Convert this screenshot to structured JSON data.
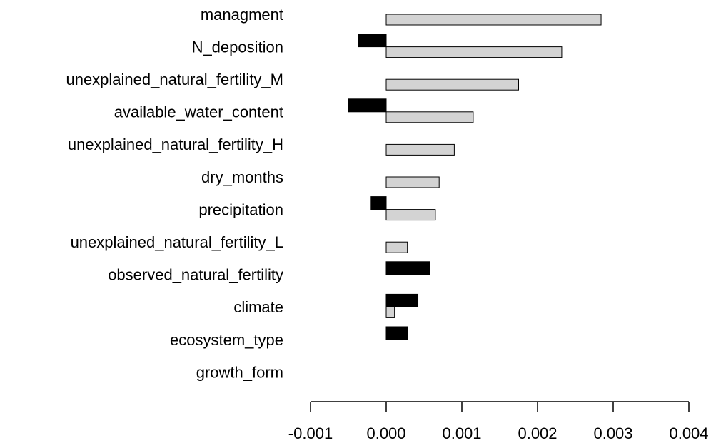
{
  "chart_data": {
    "type": "bar",
    "orientation": "horizontal",
    "categories": [
      "managment",
      "N_deposition",
      "unexplained_natural_fertility_M",
      "available_water_content",
      "unexplained_natural_fertility_H",
      "dry_months",
      "precipitation",
      "unexplained_natural_fertility_L",
      "observed_natural_fertility",
      "climate",
      "ecosystem_type",
      "growth_form"
    ],
    "series": [
      {
        "color": "#000000",
        "values": [
          0,
          -0.00037,
          0,
          -0.0005,
          0,
          0,
          -0.0002,
          0,
          0.00058,
          0.00042,
          0.00028,
          0
        ]
      },
      {
        "color": "#d3d3d3",
        "values": [
          0.00284,
          0.00232,
          0.00175,
          0.00115,
          0.0009,
          0.0007,
          0.00065,
          0.00028,
          0,
          0.00011,
          0,
          0
        ]
      }
    ],
    "xlim": [
      -0.001,
      0.004
    ],
    "xticks": [
      -0.001,
      {
        "value": 0,
        "label": "0.000"
      },
      0.001,
      0.002,
      0.003,
      0.004
    ]
  }
}
